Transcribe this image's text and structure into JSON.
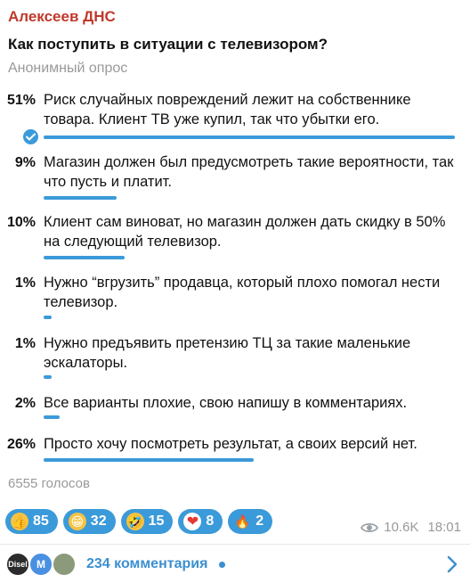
{
  "post": {
    "author": "Алексеев ДНС",
    "question": "Как поступить в ситуации с телевизором?",
    "poll_type": "Анонимный опрос",
    "accent_color": "#3b9ad9",
    "author_color": "#c0392b"
  },
  "options": [
    {
      "percent": "51%",
      "value": 51,
      "text": "Риск случайных повреждений лежит на собственнике товара. Клиент ТВ уже купил, так что убытки его.",
      "chosen": true
    },
    {
      "percent": "9%",
      "value": 9,
      "text": "Магазин должен был предусмотреть такие вероятности, так что пусть и платит.",
      "chosen": false
    },
    {
      "percent": "10%",
      "value": 10,
      "text": "Клиент сам виноват, но магазин должен дать скидку в 50% на следующий телевизор.",
      "chosen": false
    },
    {
      "percent": "1%",
      "value": 1,
      "text": "Нужно “вгрузить” продавца, который плохо помогал нести телевизор.",
      "chosen": false
    },
    {
      "percent": "1%",
      "value": 1,
      "text": "Нужно предъявить претензию ТЦ за такие маленькие эскалаторы.",
      "chosen": false
    },
    {
      "percent": "2%",
      "value": 2,
      "text": "Все варианты плохие, свою напишу в комментариях.",
      "chosen": false
    },
    {
      "percent": "26%",
      "value": 26,
      "text": "Просто хочу посмотреть результат, а своих версий нет.",
      "chosen": false
    }
  ],
  "votes_label": "6555 голосов",
  "reactions": [
    {
      "icon": "thumbs-up-icon",
      "glyph": "👍",
      "count": "85"
    },
    {
      "icon": "grinning-face-icon",
      "glyph": "😁",
      "count": "32"
    },
    {
      "icon": "rofl-face-icon",
      "glyph": "🤣",
      "count": "15"
    },
    {
      "icon": "heart-icon",
      "glyph": "❤",
      "count": "8"
    },
    {
      "icon": "fire-icon",
      "glyph": "🔥",
      "count": "2"
    }
  ],
  "meta": {
    "views": "10.6K",
    "time": "18:01"
  },
  "comments": {
    "label": "234 комментария",
    "avatars": [
      "Disel",
      "M",
      ""
    ]
  }
}
